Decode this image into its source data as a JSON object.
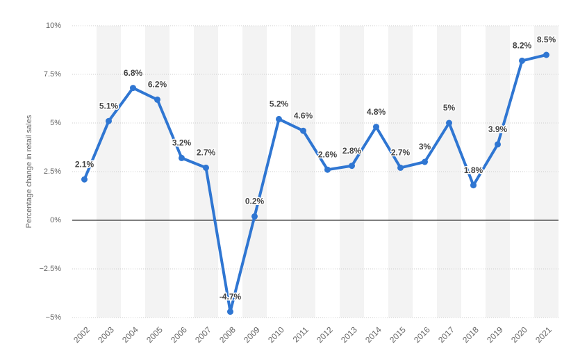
{
  "chart_data": {
    "type": "line",
    "y_label": "Percentage change in retail sales",
    "categories": [
      "2002",
      "2003",
      "2004",
      "2005",
      "2006",
      "2007",
      "2008",
      "2009",
      "2010",
      "2011",
      "2012",
      "2013",
      "2014",
      "2015",
      "2016",
      "2017",
      "2018",
      "2019",
      "2020",
      "2021"
    ],
    "values": [
      2.1,
      5.1,
      6.8,
      6.2,
      3.2,
      2.7,
      -4.7,
      0.2,
      5.2,
      4.6,
      2.6,
      2.8,
      4.8,
      2.7,
      3,
      5,
      1.8,
      3.9,
      8.2,
      8.5
    ],
    "value_labels": [
      "2.1%",
      "5.1%",
      "6.8%",
      "6.2%",
      "3.2%",
      "2.7%",
      "-4.7%",
      "0.2%",
      "5.2%",
      "4.6%",
      "2.6%",
      "2.8%",
      "4.8%",
      "2.7%",
      "3%",
      "5%",
      "1.8%",
      "3.9%",
      "8.2%",
      "8.5%"
    ],
    "color": "#2f76d2",
    "ylim": [
      -5,
      10
    ],
    "yticks": [
      {
        "value": -5,
        "label": "−5%"
      },
      {
        "value": -2.5,
        "label": "−2.5%"
      },
      {
        "value": 0,
        "label": "0%"
      },
      {
        "value": 2.5,
        "label": "2.5%"
      },
      {
        "value": 5,
        "label": "5%"
      },
      {
        "value": 7.5,
        "label": "7.5%"
      },
      {
        "value": 10,
        "label": "10%"
      }
    ],
    "grid": true
  }
}
